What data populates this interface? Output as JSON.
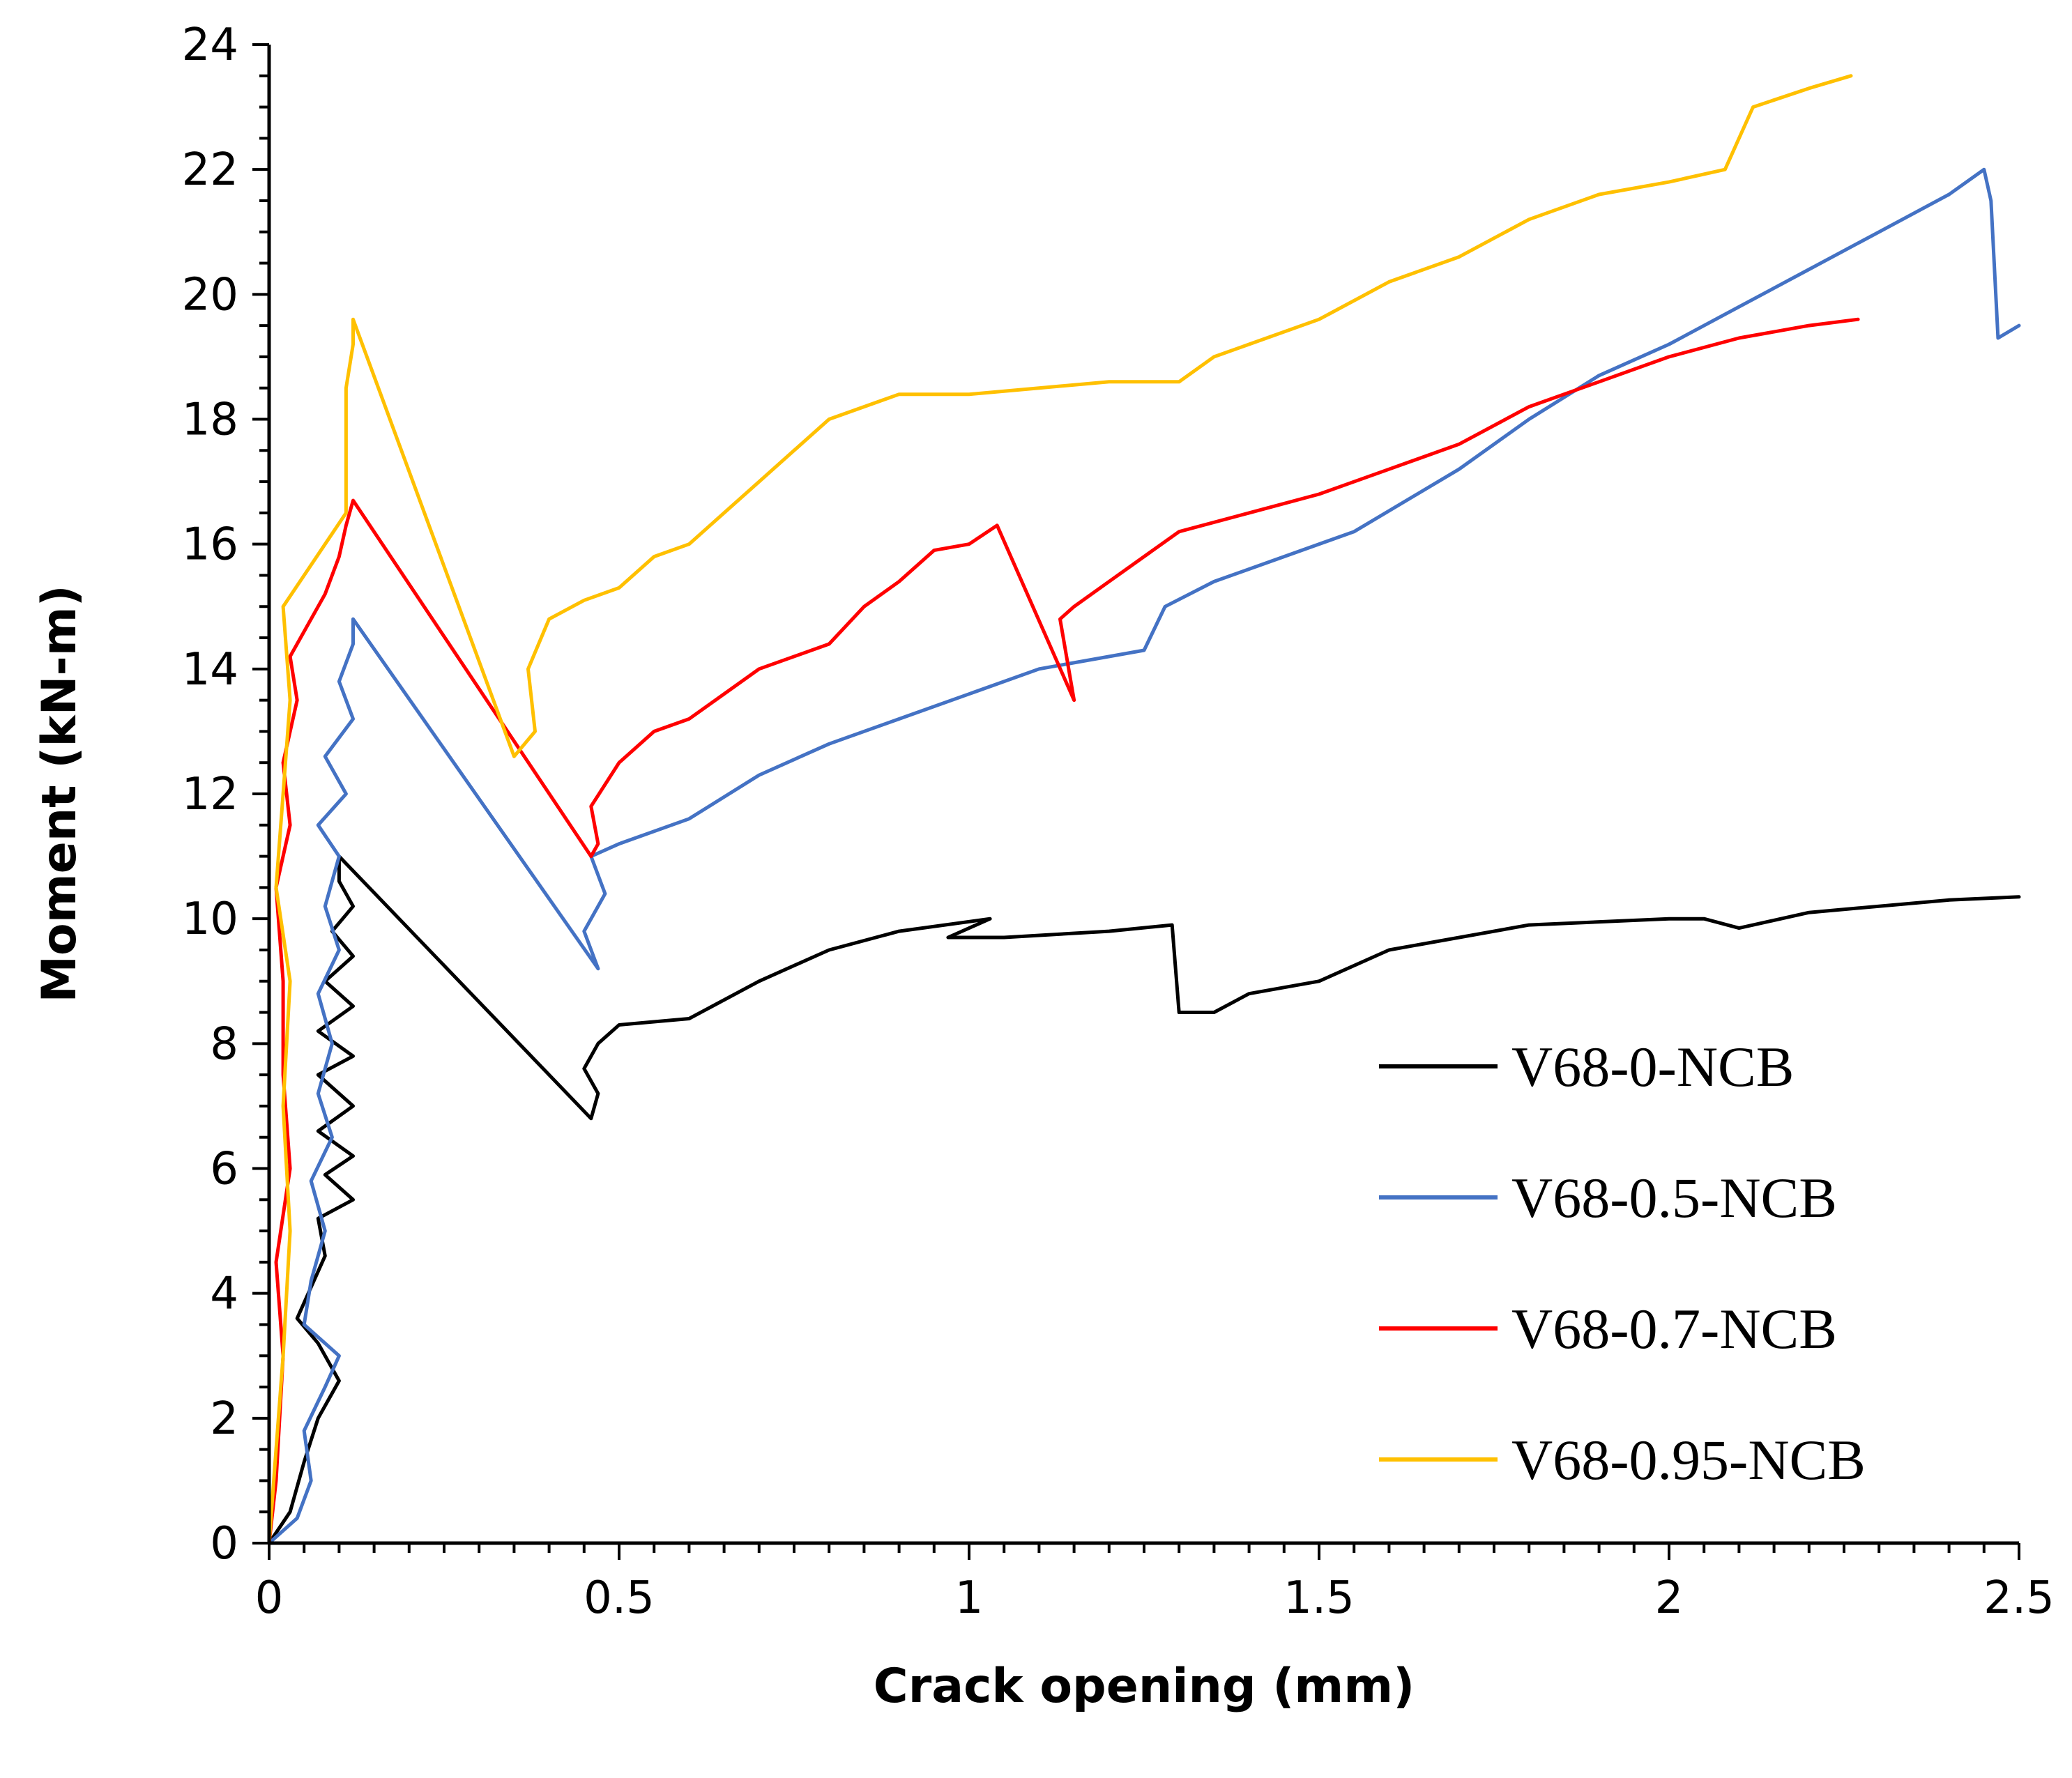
{
  "chart_data": {
    "type": "line",
    "title": "",
    "xlabel": "Crack opening (mm)",
    "ylabel": "Moment (kN-m)",
    "xlim": [
      0,
      2.5
    ],
    "ylim": [
      0,
      24
    ],
    "x_ticks": [
      0,
      0.5,
      1,
      1.5,
      2,
      2.5
    ],
    "x_tick_labels": [
      "0",
      "0.5",
      "1",
      "1.5",
      "2",
      "2.5"
    ],
    "x_minor_step": 0.05,
    "y_ticks": [
      0,
      2,
      4,
      6,
      8,
      10,
      12,
      14,
      16,
      18,
      20,
      22,
      24
    ],
    "y_tick_labels": [
      "0",
      "2",
      "4",
      "6",
      "8",
      "10",
      "12",
      "14",
      "16",
      "18",
      "20",
      "22",
      "24"
    ],
    "y_minor_step": 0.5,
    "grid": false,
    "legend_position": "lower-right",
    "series": [
      {
        "name": "V68-0-NCB",
        "color": "#000000",
        "points": [
          [
            0,
            0
          ],
          [
            0.03,
            0.5
          ],
          [
            0.05,
            1.3
          ],
          [
            0.07,
            2
          ],
          [
            0.1,
            2.6
          ],
          [
            0.07,
            3.2
          ],
          [
            0.04,
            3.6
          ],
          [
            0.06,
            4.1
          ],
          [
            0.08,
            4.6
          ],
          [
            0.07,
            5.2
          ],
          [
            0.12,
            5.5
          ],
          [
            0.08,
            5.9
          ],
          [
            0.12,
            6.2
          ],
          [
            0.07,
            6.6
          ],
          [
            0.12,
            7
          ],
          [
            0.07,
            7.5
          ],
          [
            0.12,
            7.8
          ],
          [
            0.07,
            8.2
          ],
          [
            0.12,
            8.6
          ],
          [
            0.08,
            9
          ],
          [
            0.12,
            9.4
          ],
          [
            0.09,
            9.8
          ],
          [
            0.12,
            10.2
          ],
          [
            0.1,
            10.6
          ],
          [
            0.1,
            11
          ],
          [
            0.46,
            6.8
          ],
          [
            0.47,
            7.2
          ],
          [
            0.45,
            7.6
          ],
          [
            0.47,
            8
          ],
          [
            0.5,
            8.3
          ],
          [
            0.6,
            8.4
          ],
          [
            0.7,
            9
          ],
          [
            0.8,
            9.5
          ],
          [
            0.9,
            9.8
          ],
          [
            1.03,
            10
          ],
          [
            0.97,
            9.7
          ],
          [
            1.05,
            9.7
          ],
          [
            1.2,
            9.8
          ],
          [
            1.29,
            9.9
          ],
          [
            1.3,
            8.5
          ],
          [
            1.35,
            8.5
          ],
          [
            1.4,
            8.8
          ],
          [
            1.5,
            9
          ],
          [
            1.6,
            9.5
          ],
          [
            1.8,
            9.9
          ],
          [
            2,
            10
          ],
          [
            2.05,
            10
          ],
          [
            2.1,
            9.85
          ],
          [
            2.2,
            10.1
          ],
          [
            2.4,
            10.3
          ],
          [
            2.5,
            10.35
          ]
        ]
      },
      {
        "name": "V68-0.5-NCB",
        "color": "#4472C4",
        "points": [
          [
            0,
            0
          ],
          [
            0.04,
            0.4
          ],
          [
            0.06,
            1
          ],
          [
            0.05,
            1.8
          ],
          [
            0.08,
            2.5
          ],
          [
            0.1,
            3
          ],
          [
            0.05,
            3.5
          ],
          [
            0.06,
            4.2
          ],
          [
            0.08,
            5
          ],
          [
            0.06,
            5.8
          ],
          [
            0.09,
            6.5
          ],
          [
            0.07,
            7.2
          ],
          [
            0.09,
            8
          ],
          [
            0.07,
            8.8
          ],
          [
            0.1,
            9.5
          ],
          [
            0.08,
            10.2
          ],
          [
            0.1,
            11
          ],
          [
            0.07,
            11.5
          ],
          [
            0.11,
            12
          ],
          [
            0.08,
            12.6
          ],
          [
            0.12,
            13.2
          ],
          [
            0.1,
            13.8
          ],
          [
            0.12,
            14.4
          ],
          [
            0.12,
            14.8
          ],
          [
            0.47,
            9.2
          ],
          [
            0.45,
            9.8
          ],
          [
            0.48,
            10.4
          ],
          [
            0.46,
            11
          ],
          [
            0.5,
            11.2
          ],
          [
            0.6,
            11.6
          ],
          [
            0.7,
            12.3
          ],
          [
            0.8,
            12.8
          ],
          [
            0.9,
            13.2
          ],
          [
            1,
            13.6
          ],
          [
            1.1,
            14
          ],
          [
            1.25,
            14.3
          ],
          [
            1.28,
            15
          ],
          [
            1.35,
            15.4
          ],
          [
            1.45,
            15.8
          ],
          [
            1.55,
            16.2
          ],
          [
            1.7,
            17.2
          ],
          [
            1.8,
            18
          ],
          [
            1.9,
            18.7
          ],
          [
            2,
            19.2
          ],
          [
            2.1,
            19.8
          ],
          [
            2.2,
            20.4
          ],
          [
            2.3,
            21
          ],
          [
            2.4,
            21.6
          ],
          [
            2.45,
            22
          ],
          [
            2.46,
            21.5
          ],
          [
            2.47,
            19.3
          ],
          [
            2.5,
            19.5
          ]
        ]
      },
      {
        "name": "V68-0.7-NCB",
        "color": "#FF0000",
        "points": [
          [
            0,
            0
          ],
          [
            0.01,
            1
          ],
          [
            0.02,
            3
          ],
          [
            0.01,
            4.5
          ],
          [
            0.03,
            6
          ],
          [
            0.02,
            7.5
          ],
          [
            0.02,
            9
          ],
          [
            0.01,
            10.5
          ],
          [
            0.03,
            11.5
          ],
          [
            0.02,
            12.5
          ],
          [
            0.04,
            13.5
          ],
          [
            0.03,
            14.2
          ],
          [
            0.06,
            14.8
          ],
          [
            0.08,
            15.2
          ],
          [
            0.1,
            15.8
          ],
          [
            0.11,
            16.3
          ],
          [
            0.12,
            16.7
          ],
          [
            0.46,
            11
          ],
          [
            0.47,
            11.2
          ],
          [
            0.46,
            11.8
          ],
          [
            0.5,
            12.5
          ],
          [
            0.55,
            13
          ],
          [
            0.6,
            13.2
          ],
          [
            0.65,
            13.6
          ],
          [
            0.7,
            14
          ],
          [
            0.8,
            14.4
          ],
          [
            0.85,
            15
          ],
          [
            0.9,
            15.4
          ],
          [
            0.95,
            15.9
          ],
          [
            1,
            16
          ],
          [
            1.04,
            16.3
          ],
          [
            1.15,
            13.5
          ],
          [
            1.13,
            14.8
          ],
          [
            1.15,
            15
          ],
          [
            1.2,
            15.4
          ],
          [
            1.3,
            16.2
          ],
          [
            1.4,
            16.5
          ],
          [
            1.5,
            16.8
          ],
          [
            1.6,
            17.2
          ],
          [
            1.7,
            17.6
          ],
          [
            1.8,
            18.2
          ],
          [
            1.9,
            18.6
          ],
          [
            2,
            19
          ],
          [
            2.1,
            19.3
          ],
          [
            2.2,
            19.5
          ],
          [
            2.27,
            19.6
          ]
        ]
      },
      {
        "name": "V68-0.95-NCB",
        "color": "#FFC000",
        "points": [
          [
            0,
            0
          ],
          [
            0.01,
            1.5
          ],
          [
            0.02,
            3
          ],
          [
            0.03,
            5
          ],
          [
            0.02,
            7
          ],
          [
            0.03,
            9
          ],
          [
            0.01,
            10.5
          ],
          [
            0.02,
            12
          ],
          [
            0.03,
            13.5
          ],
          [
            0.02,
            15
          ],
          [
            0.05,
            15.5
          ],
          [
            0.08,
            16
          ],
          [
            0.11,
            16.5
          ],
          [
            0.11,
            17.5
          ],
          [
            0.11,
            18.5
          ],
          [
            0.12,
            19.2
          ],
          [
            0.12,
            19.6
          ],
          [
            0.35,
            12.6
          ],
          [
            0.38,
            13
          ],
          [
            0.37,
            14
          ],
          [
            0.4,
            14.8
          ],
          [
            0.45,
            15.1
          ],
          [
            0.5,
            15.3
          ],
          [
            0.55,
            15.8
          ],
          [
            0.6,
            16
          ],
          [
            0.65,
            16.5
          ],
          [
            0.7,
            17
          ],
          [
            0.75,
            17.5
          ],
          [
            0.8,
            18
          ],
          [
            0.9,
            18.4
          ],
          [
            1,
            18.4
          ],
          [
            1.1,
            18.5
          ],
          [
            1.2,
            18.6
          ],
          [
            1.3,
            18.6
          ],
          [
            1.35,
            19
          ],
          [
            1.4,
            19.2
          ],
          [
            1.5,
            19.6
          ],
          [
            1.6,
            20.2
          ],
          [
            1.7,
            20.6
          ],
          [
            1.8,
            21.2
          ],
          [
            1.9,
            21.6
          ],
          [
            2,
            21.8
          ],
          [
            2.08,
            22
          ],
          [
            2.1,
            22.5
          ],
          [
            2.12,
            23
          ],
          [
            2.2,
            23.3
          ],
          [
            2.26,
            23.5
          ]
        ]
      }
    ]
  }
}
